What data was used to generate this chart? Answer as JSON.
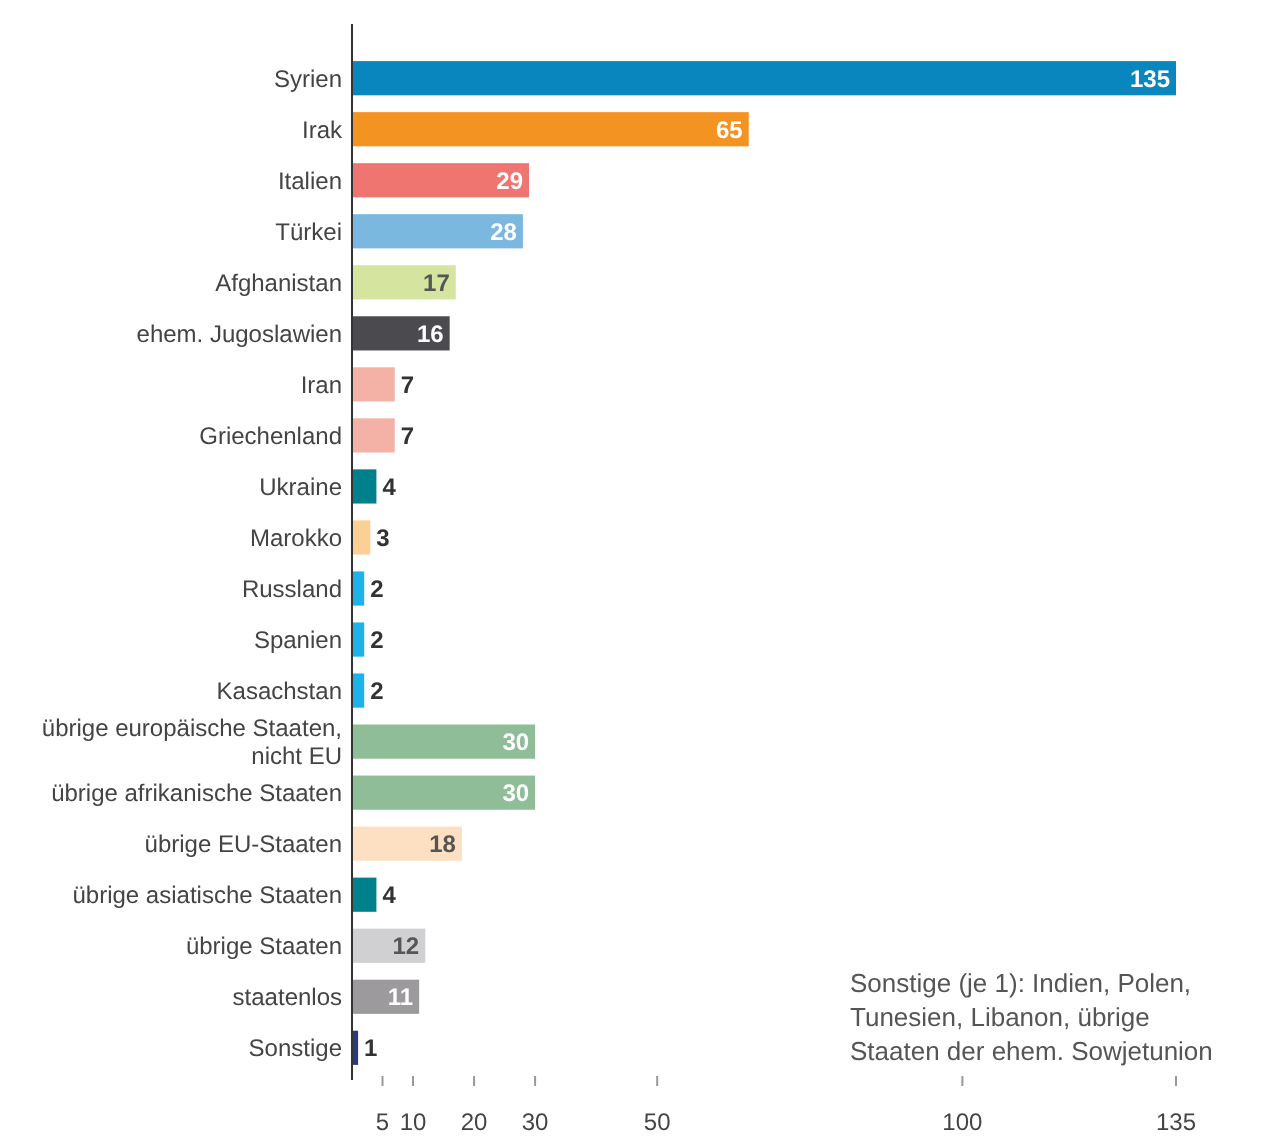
{
  "chart_data": {
    "type": "bar",
    "orientation": "horizontal",
    "categories": [
      "Syrien",
      "Irak",
      "Italien",
      "Türkei",
      "Afghanistan",
      "ehem. Jugoslawien",
      "Iran",
      "Griechenland",
      "Ukraine",
      "Marokko",
      "Russland",
      "Spanien",
      "Kasachstan",
      "übrige europäische Staaten, nicht EU",
      "übrige afrikanische Staaten",
      "übrige EU-Staaten",
      "übrige asiatische Staaten",
      "übrige Staaten",
      "staatenlos",
      "Sonstige"
    ],
    "values": [
      135,
      65,
      29,
      28,
      17,
      16,
      7,
      7,
      4,
      3,
      2,
      2,
      2,
      30,
      30,
      18,
      4,
      12,
      11,
      1
    ],
    "colors": [
      "#0a86bf",
      "#f39322",
      "#ef7670",
      "#7ab8e0",
      "#d5e5a0",
      "#4a4a4f",
      "#f4b1a5",
      "#f4b1a5",
      "#00808a",
      "#fccf95",
      "#1fb2e8",
      "#1fb2e8",
      "#1fb2e8",
      "#8fbd97",
      "#8fbd97",
      "#fde0c2",
      "#00808a",
      "#d0cfd2",
      "#9c9a9d",
      "#2a3a80"
    ],
    "xlim": [
      0,
      135
    ],
    "xticks": [
      5,
      10,
      20,
      30,
      50,
      100,
      135
    ],
    "data_labels": true,
    "annotations": [
      "Sonstige (je 1): Indien, Polen, Tunesien, Libanon, übrige Staaten der ehem. Sowjetunion"
    ]
  }
}
